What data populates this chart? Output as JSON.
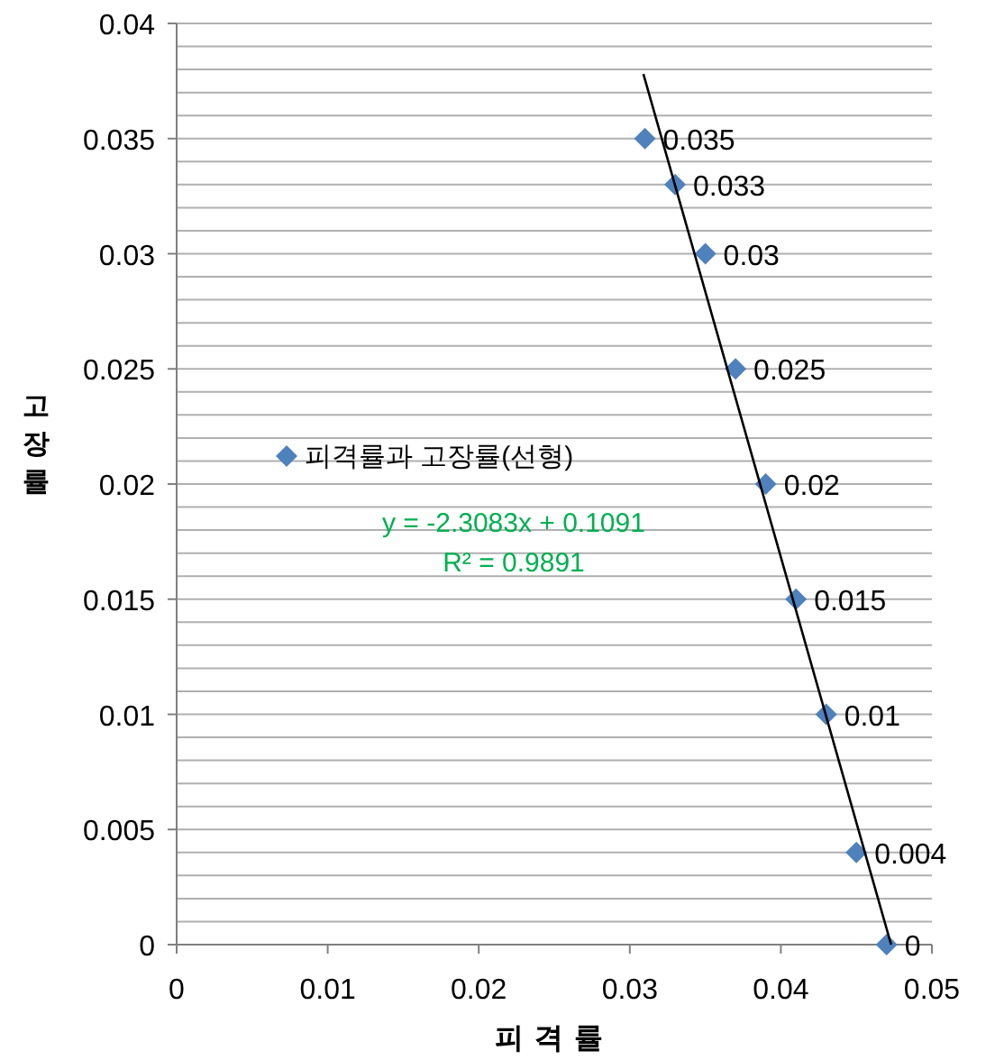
{
  "chart_data": {
    "type": "scatter",
    "xlabel": "피격률",
    "ylabel": "고장률",
    "xlim": [
      0,
      0.05
    ],
    "ylim": [
      0,
      0.04
    ],
    "xticks": [
      0,
      0.01,
      0.02,
      0.03,
      0.04,
      0.05
    ],
    "yticks": [
      0,
      {
        "value": 0.001,
        "label": null
      },
      {
        "value": 0.002,
        "label": null
      },
      {
        "value": 0.003,
        "label": null
      },
      {
        "value": 0.004,
        "label": null
      },
      0.005,
      {
        "value": 0.006,
        "label": null
      },
      {
        "value": 0.007,
        "label": null
      },
      {
        "value": 0.008,
        "label": null
      },
      {
        "value": 0.009,
        "label": null
      },
      0.01,
      {
        "value": 0.011,
        "label": null
      },
      {
        "value": 0.012,
        "label": null
      },
      {
        "value": 0.013,
        "label": null
      },
      {
        "value": 0.014,
        "label": null
      },
      0.015,
      {
        "value": 0.016,
        "label": null
      },
      {
        "value": 0.017,
        "label": null
      },
      {
        "value": 0.018,
        "label": null
      },
      {
        "value": 0.019,
        "label": null
      },
      0.02,
      {
        "value": 0.021,
        "label": null
      },
      {
        "value": 0.022,
        "label": null
      },
      {
        "value": 0.023,
        "label": null
      },
      {
        "value": 0.024,
        "label": null
      },
      0.025,
      {
        "value": 0.026,
        "label": null
      },
      {
        "value": 0.027,
        "label": null
      },
      {
        "value": 0.028,
        "label": null
      },
      {
        "value": 0.029,
        "label": null
      },
      0.03,
      {
        "value": 0.031,
        "label": null
      },
      {
        "value": 0.032,
        "label": null
      },
      {
        "value": 0.033,
        "label": null
      },
      {
        "value": 0.034,
        "label": null
      },
      0.035,
      {
        "value": 0.036,
        "label": null
      },
      {
        "value": 0.037,
        "label": null
      },
      {
        "value": 0.038,
        "label": null
      },
      {
        "value": 0.039,
        "label": null
      },
      0.04
    ],
    "grid": "y",
    "legend": "left",
    "marker": "diamond",
    "series": [
      {
        "name": "피격률과 고장률(선형)",
        "color": "#4f81bd",
        "x": [
          0.031,
          0.033,
          0.035,
          0.037,
          0.039,
          0.041,
          0.043,
          0.045,
          0.047
        ],
        "values": [
          0.035,
          0.033,
          0.03,
          0.025,
          0.02,
          0.015,
          0.01,
          0.004,
          0
        ],
        "value_labels": [
          "0.035",
          "0.033",
          "0.03",
          "0.025",
          "0.02",
          "0.015",
          "0.01",
          "0.004",
          "0"
        ]
      },
      {
        "type": "line",
        "color": "#000000",
        "marker": "none",
        "x": [
          0.0309,
          0.0473
        ],
        "values": [
          0.0378,
          0
        ]
      }
    ],
    "annotations": [
      "y = -2.3083x + 0.1091",
      "R² = 0.9891"
    ]
  }
}
